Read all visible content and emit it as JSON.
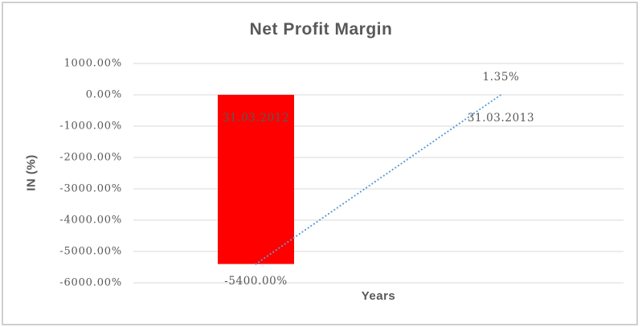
{
  "chart": {
    "title": "Net Profit Margin",
    "y_axis_title": "IN (%)",
    "x_axis_title": "Years"
  },
  "chart_data": {
    "type": "bar",
    "title": "Net Profit Margin",
    "xlabel": "Years",
    "ylabel": "IN (%)",
    "categories": [
      "31.03.2012",
      "31.03.2013"
    ],
    "series": [
      {
        "name": "Net Profit Margin",
        "render": "bar",
        "values": [
          -5400.0,
          1.35
        ],
        "color": "#FF0000"
      },
      {
        "name": "Trendline",
        "render": "dotted-line",
        "values": [
          -5400.0,
          1.35
        ],
        "color": "#5B9BD5"
      }
    ],
    "data_labels": [
      "-5400.00%",
      "1.35%"
    ],
    "ylim": [
      -6000,
      1000
    ],
    "ytick_step": 1000,
    "ytick_labels": [
      "1000.00%",
      "0.00%",
      "-1000.00%",
      "-2000.00%",
      "-3000.00%",
      "-4000.00%",
      "-5000.00%",
      "-6000.00%"
    ],
    "grid": true,
    "legend": false
  },
  "style": {
    "bar_color": "#FF0000",
    "line_color": "#5B9BD5",
    "grid_color": "#D9D9D9",
    "text_color": "#595959",
    "border_color": "#CFCFCF",
    "background": "#FFFFFF"
  }
}
